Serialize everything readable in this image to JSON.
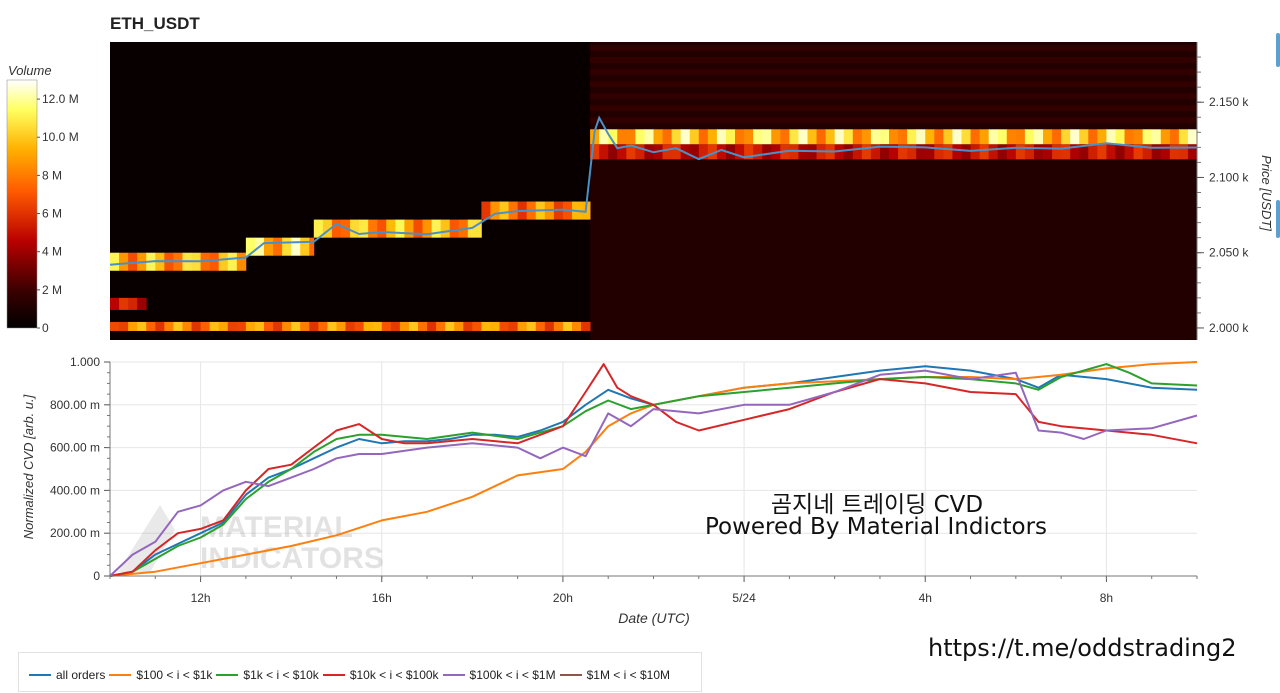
{
  "title": "ETH_USDT",
  "heatmap": {
    "colorbar_label": "Volume",
    "colorbar_ticks": [
      "12.0 M",
      "10.0 M",
      "8 M",
      "6 M",
      "4 M",
      "2 M",
      "0"
    ],
    "colorbar_values": [
      12,
      10,
      8,
      6,
      4,
      2,
      0
    ],
    "price_axis_label": "Price [USDT]",
    "price_ticks": [
      "2.150 k",
      "2.100 k",
      "2.050 k",
      "2.000 k"
    ],
    "price_values": [
      2150,
      2100,
      2050,
      2000
    ],
    "price_range": [
      1992,
      2190
    ]
  },
  "cvd": {
    "y_label": "Normalized CVD [arb. u.]",
    "x_label": "Date (UTC)",
    "y_ticks": [
      "1.000",
      "800.00 m",
      "600.00 m",
      "400.00 m",
      "200.00 m",
      "0"
    ],
    "x_ticks": [
      "12h",
      "16h",
      "20h",
      "5/24",
      "4h",
      "8h"
    ]
  },
  "watermark": {
    "line1": "MATERIAL",
    "line2": "INDICATORS"
  },
  "overlay": {
    "line1": "곰지네 트레이딩 CVD",
    "line2": "Powered By Material Indictors",
    "url": "https://t.me/oddstrading2"
  },
  "legend": [
    {
      "label": "all orders",
      "color": "#1f77b4"
    },
    {
      "label": "$100 < i < $1k",
      "color": "#ff7f0e"
    },
    {
      "label": "$1k < i < $10k",
      "color": "#2ca02c"
    },
    {
      "label": "$10k < i < $100k",
      "color": "#d62728"
    },
    {
      "label": "$100k < i < $1M",
      "color": "#9467bd"
    },
    {
      "label": "$1M < i < $10M",
      "color": "#8c564b"
    }
  ],
  "chart_data": [
    {
      "type": "heatmap",
      "title": "ETH_USDT",
      "xlabel": "",
      "ylabel": "Price [USDT]",
      "colorbar_label": "Volume",
      "x_range_hours": [
        10,
        34
      ],
      "y_range": [
        1992,
        2190
      ],
      "color_range": [
        0,
        13
      ],
      "mid_price": {
        "x": [
          10.0,
          11.0,
          12.0,
          13.0,
          13.4,
          14.5,
          15.0,
          15.5,
          16.0,
          17.0,
          18.0,
          18.5,
          19.0,
          20.0,
          20.5,
          20.7,
          20.8,
          21.0,
          21.2,
          21.5,
          22.0,
          22.5,
          23.0,
          23.5,
          24.0,
          25.0,
          26.0,
          27.0,
          28.0,
          29.0,
          30.0,
          31.0,
          32.0,
          33.0,
          34.0
        ],
        "y": [
          2042,
          2044,
          2045,
          2046,
          2057,
          2057,
          2069,
          2063,
          2063,
          2063,
          2066,
          2076,
          2078,
          2078,
          2078,
          2130,
          2140,
          2129,
          2119,
          2122,
          2116,
          2120,
          2112,
          2118,
          2114,
          2117,
          2118,
          2120,
          2120,
          2118,
          2119,
          2120,
          2122,
          2120,
          2120
        ]
      },
      "bands": [
        {
          "start": 10,
          "end": 20.6,
          "price": [
            1998,
            2004
          ],
          "volume": 8
        },
        {
          "start": 10,
          "end": 10.8,
          "price": [
            2012,
            2020
          ],
          "volume": 5
        },
        {
          "start": 10,
          "end": 13,
          "price": [
            2038,
            2050
          ],
          "volume": 9
        },
        {
          "start": 13,
          "end": 14.5,
          "price": [
            2048,
            2060
          ],
          "volume": 10
        },
        {
          "start": 14.5,
          "end": 18.2,
          "price": [
            2060,
            2072
          ],
          "volume": 9
        },
        {
          "start": 18.2,
          "end": 20.6,
          "price": [
            2072,
            2084
          ],
          "volume": 8
        },
        {
          "start": 20.6,
          "end": 34,
          "price": [
            2122,
            2132
          ],
          "volume": 10
        },
        {
          "start": 20.6,
          "end": 34,
          "price": [
            2112,
            2122
          ],
          "volume": 5
        }
      ]
    },
    {
      "type": "line",
      "title": "",
      "xlabel": "Date (UTC)",
      "ylabel": "Normalized CVD [arb. u.]",
      "x_ticks": [
        "12h",
        "16h",
        "20h",
        "5/24",
        "4h",
        "8h"
      ],
      "x_tick_hours": [
        12,
        16,
        20,
        24,
        28,
        32
      ],
      "x_range_hours": [
        10,
        34
      ],
      "ylim": [
        0,
        1.0
      ],
      "series": [
        {
          "name": "all orders",
          "color": "#1f77b4",
          "x": [
            10,
            10.5,
            11,
            11.5,
            12,
            12.5,
            13,
            13.5,
            14,
            14.5,
            15,
            15.5,
            16,
            16.5,
            17,
            17.5,
            18,
            18.5,
            19,
            19.5,
            20,
            20.5,
            21,
            21.5,
            22,
            23,
            24,
            25,
            26,
            27,
            28,
            29,
            30,
            30.5,
            31,
            32,
            33,
            34
          ],
          "y": [
            0,
            0.02,
            0.1,
            0.15,
            0.2,
            0.25,
            0.38,
            0.46,
            0.5,
            0.55,
            0.6,
            0.64,
            0.62,
            0.63,
            0.63,
            0.64,
            0.66,
            0.66,
            0.65,
            0.68,
            0.72,
            0.8,
            0.87,
            0.83,
            0.8,
            0.84,
            0.88,
            0.9,
            0.93,
            0.96,
            0.98,
            0.96,
            0.92,
            0.88,
            0.94,
            0.92,
            0.88,
            0.87
          ]
        },
        {
          "name": "$100 < i < $1k",
          "color": "#ff7f0e",
          "x": [
            10,
            11,
            12,
            13,
            14,
            15,
            16,
            17,
            18,
            19,
            20,
            20.5,
            21,
            21.5,
            22,
            23,
            24,
            25,
            26,
            27,
            28,
            29,
            30,
            31,
            32,
            33,
            34
          ],
          "y": [
            0,
            0.02,
            0.06,
            0.1,
            0.14,
            0.19,
            0.26,
            0.3,
            0.37,
            0.47,
            0.5,
            0.58,
            0.7,
            0.76,
            0.8,
            0.84,
            0.88,
            0.9,
            0.91,
            0.92,
            0.93,
            0.93,
            0.92,
            0.94,
            0.97,
            0.99,
            1.0
          ]
        },
        {
          "name": "$1k < i < $10k",
          "color": "#2ca02c",
          "x": [
            10,
            10.5,
            11,
            11.5,
            12,
            12.5,
            13,
            13.5,
            14,
            14.5,
            15,
            15.5,
            16,
            17,
            18,
            19,
            19.5,
            20,
            20.5,
            21,
            21.5,
            22,
            23,
            24,
            25,
            26,
            27,
            28,
            29,
            30,
            30.5,
            31,
            32,
            32.5,
            33,
            34
          ],
          "y": [
            0,
            0.02,
            0.08,
            0.14,
            0.18,
            0.24,
            0.36,
            0.44,
            0.5,
            0.58,
            0.64,
            0.66,
            0.66,
            0.64,
            0.67,
            0.64,
            0.67,
            0.7,
            0.77,
            0.82,
            0.78,
            0.8,
            0.84,
            0.86,
            0.88,
            0.9,
            0.92,
            0.93,
            0.92,
            0.9,
            0.87,
            0.93,
            0.99,
            0.95,
            0.9,
            0.89
          ]
        },
        {
          "name": "$10k < i < $100k",
          "color": "#d62728",
          "x": [
            10,
            10.5,
            11,
            11.5,
            12,
            12.5,
            13,
            13.5,
            14,
            14.5,
            15,
            15.5,
            16,
            16.5,
            17,
            18,
            19,
            19.5,
            20,
            20.5,
            20.9,
            21.2,
            21.5,
            22,
            22.5,
            23,
            24,
            25,
            26,
            27,
            28,
            29,
            30,
            30.5,
            31,
            32,
            33,
            34
          ],
          "y": [
            0,
            0.02,
            0.12,
            0.2,
            0.22,
            0.26,
            0.4,
            0.5,
            0.52,
            0.6,
            0.68,
            0.71,
            0.64,
            0.62,
            0.62,
            0.64,
            0.62,
            0.66,
            0.7,
            0.86,
            0.99,
            0.88,
            0.84,
            0.8,
            0.72,
            0.68,
            0.73,
            0.78,
            0.86,
            0.92,
            0.9,
            0.86,
            0.85,
            0.72,
            0.7,
            0.68,
            0.66,
            0.62
          ]
        },
        {
          "name": "$100k < i < $1M",
          "color": "#9467bd",
          "x": [
            10,
            10.5,
            11,
            11.5,
            12,
            12.5,
            13,
            13.5,
            14,
            14.5,
            15,
            15.5,
            16,
            17,
            18,
            19,
            19.5,
            20,
            20.5,
            21,
            21.5,
            22,
            23,
            24,
            25,
            26,
            27,
            28,
            29,
            30,
            30.5,
            31,
            31.5,
            32,
            33,
            34
          ],
          "y": [
            0,
            0.1,
            0.16,
            0.3,
            0.33,
            0.4,
            0.44,
            0.42,
            0.46,
            0.5,
            0.55,
            0.57,
            0.57,
            0.6,
            0.62,
            0.6,
            0.55,
            0.6,
            0.56,
            0.76,
            0.7,
            0.78,
            0.76,
            0.8,
            0.8,
            0.86,
            0.94,
            0.96,
            0.92,
            0.95,
            0.68,
            0.67,
            0.64,
            0.68,
            0.69,
            0.75
          ]
        }
      ]
    }
  ]
}
